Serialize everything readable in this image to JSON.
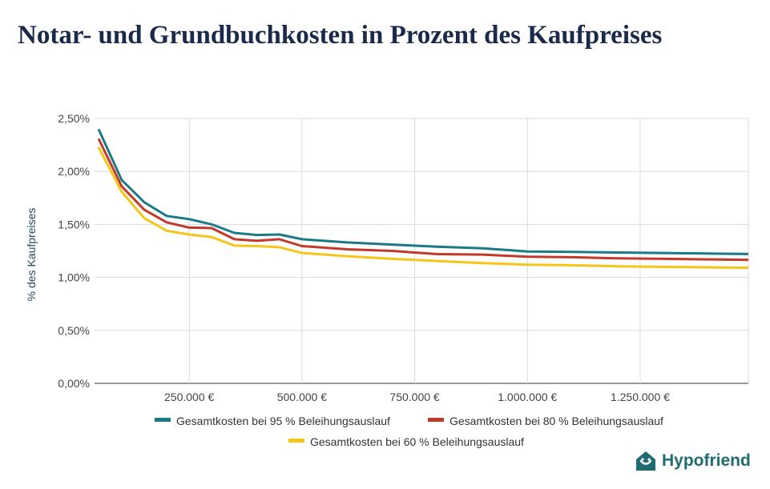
{
  "chart_data": {
    "type": "line",
    "title": "Notar- und Grundbuchkosten in Prozent des Kaufpreises",
    "xlabel": "",
    "ylabel": "% des Kaufpreises",
    "xlim": [
      40000,
      1490000
    ],
    "ylim": [
      0,
      2.5
    ],
    "x_ticks": [
      {
        "value": 250000,
        "label": "250.000 €"
      },
      {
        "value": 500000,
        "label": "500.000 €"
      },
      {
        "value": 750000,
        "label": "750.000 €"
      },
      {
        "value": 1000000,
        "label": "1.000.000 €"
      },
      {
        "value": 1250000,
        "label": "1.250.000 €"
      }
    ],
    "y_ticks": [
      {
        "value": 0,
        "label": "0,00%"
      },
      {
        "value": 0.5,
        "label": "0,50%"
      },
      {
        "value": 1.0,
        "label": "1,00%"
      },
      {
        "value": 1.5,
        "label": "1,50%"
      },
      {
        "value": 2.0,
        "label": "2,00%"
      },
      {
        "value": 2.5,
        "label": "2,50%"
      }
    ],
    "grid": true,
    "legend_position": "bottom",
    "x": [
      50000,
      100000,
      150000,
      200000,
      250000,
      300000,
      350000,
      400000,
      450000,
      500000,
      600000,
      700000,
      800000,
      900000,
      1000000,
      1100000,
      1200000,
      1300000,
      1400000,
      1500000
    ],
    "series": [
      {
        "name": "Gesamtkosten bei 95 % Beleihungsauslauf",
        "color": "#1a7a85",
        "values": [
          2.39,
          1.92,
          1.71,
          1.58,
          1.55,
          1.5,
          1.42,
          1.4,
          1.405,
          1.36,
          1.33,
          1.31,
          1.29,
          1.275,
          1.245,
          1.24,
          1.235,
          1.23,
          1.225,
          1.22
        ]
      },
      {
        "name": "Gesamtkosten bei 80 % Beleihungsauslauf",
        "color": "#c0392b",
        "values": [
          2.3,
          1.86,
          1.64,
          1.52,
          1.47,
          1.465,
          1.36,
          1.345,
          1.36,
          1.295,
          1.265,
          1.25,
          1.22,
          1.215,
          1.195,
          1.19,
          1.18,
          1.175,
          1.17,
          1.165
        ]
      },
      {
        "name": "Gesamtkosten bei 60 % Beleihungsauslauf",
        "color": "#f5c518",
        "values": [
          2.22,
          1.81,
          1.56,
          1.44,
          1.405,
          1.38,
          1.3,
          1.295,
          1.285,
          1.23,
          1.2,
          1.175,
          1.155,
          1.135,
          1.12,
          1.115,
          1.105,
          1.1,
          1.095,
          1.09
        ]
      }
    ]
  },
  "brand": {
    "name": "Hypofriend",
    "icon": "house-icon",
    "color": "#1e6b70"
  }
}
